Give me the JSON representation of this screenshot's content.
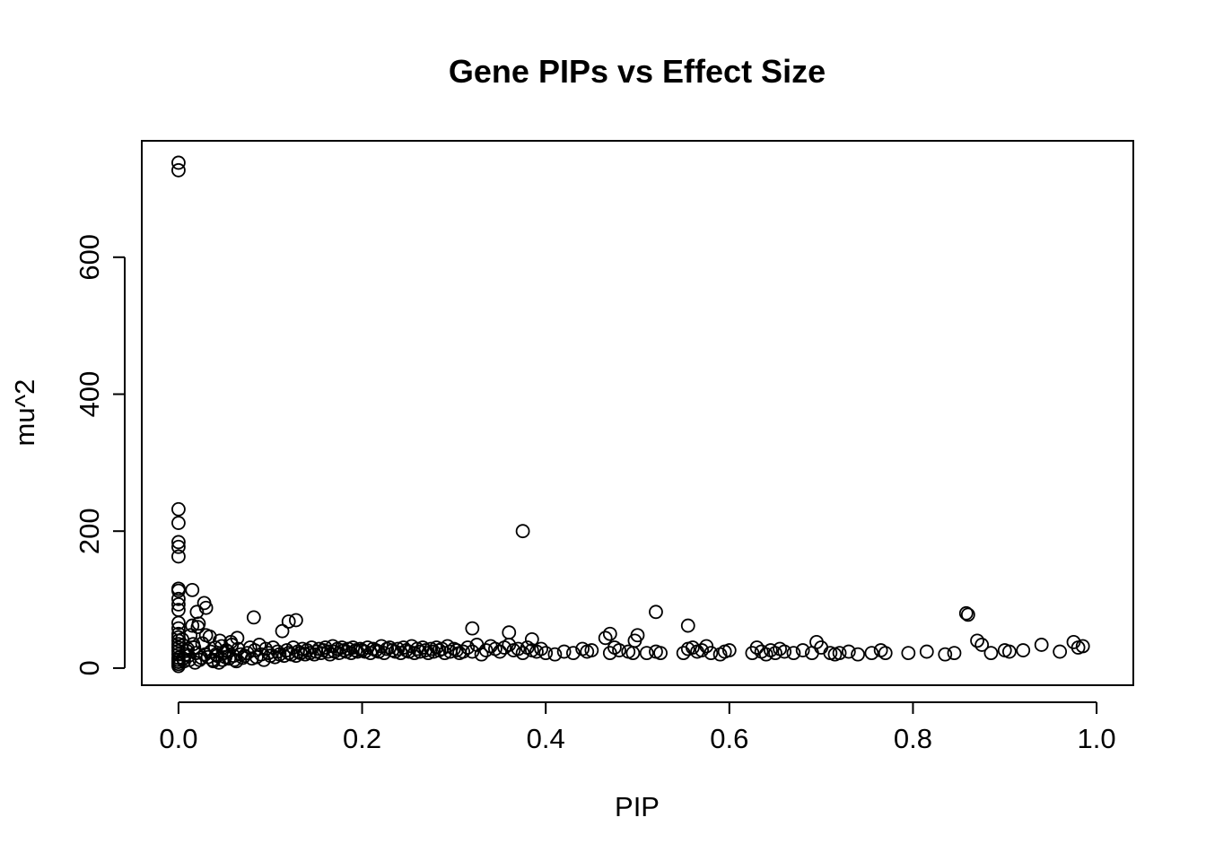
{
  "chart_data": {
    "type": "scatter",
    "title": "Gene PIPs vs Effect Size",
    "xlabel": "PIP",
    "ylabel": "mu^2",
    "xlim": [
      -0.04,
      1.04
    ],
    "ylim": [
      -25,
      770
    ],
    "x_ticks": [
      0.0,
      0.2,
      0.4,
      0.6,
      0.8,
      1.0
    ],
    "x_tick_labels": [
      "0.0",
      "0.2",
      "0.4",
      "0.6",
      "0.8",
      "1.0"
    ],
    "y_ticks": [
      0,
      200,
      400,
      600
    ],
    "y_tick_labels": [
      "0",
      "200",
      "400",
      "600"
    ],
    "grid": false,
    "legend": "none",
    "marker": "open-circle",
    "color": "#000000",
    "series": [
      {
        "x": [
          0.0,
          0.0,
          0.0,
          0.0,
          0.0,
          0.0,
          0.0,
          0.0,
          0.0,
          0.0,
          0.0,
          0.0,
          0.0,
          0.0,
          0.0,
          0.0,
          0.0,
          0.0,
          0.0,
          0.0,
          0.0,
          0.0,
          0.0,
          0.0,
          0.0,
          0.0,
          0.005,
          0.008,
          0.01,
          0.012,
          0.015,
          0.015,
          0.016,
          0.018,
          0.02,
          0.022,
          0.025,
          0.028,
          0.03,
          0.004,
          0.006,
          0.009,
          0.011,
          0.013,
          0.017,
          0.019,
          0.021,
          0.023,
          0.026,
          0.029,
          0.032,
          0.035,
          0.038,
          0.04,
          0.042,
          0.045,
          0.048,
          0.05,
          0.052,
          0.055,
          0.058,
          0.06,
          0.063,
          0.065,
          0.068,
          0.07,
          0.034,
          0.037,
          0.041,
          0.044,
          0.047,
          0.051,
          0.054,
          0.057,
          0.061,
          0.064,
          0.072,
          0.075,
          0.078,
          0.08,
          0.083,
          0.085,
          0.088,
          0.09,
          0.093,
          0.095,
          0.098,
          0.1,
          0.103,
          0.105,
          0.108,
          0.11,
          0.113,
          0.115,
          0.118,
          0.12,
          0.123,
          0.125,
          0.128,
          0.13,
          0.133,
          0.135,
          0.138,
          0.14,
          0.143,
          0.145,
          0.148,
          0.15,
          0.153,
          0.155,
          0.158,
          0.16,
          0.163,
          0.165,
          0.168,
          0.17,
          0.173,
          0.175,
          0.178,
          0.18,
          0.183,
          0.185,
          0.188,
          0.19,
          0.193,
          0.195,
          0.198,
          0.2,
          0.203,
          0.206,
          0.209,
          0.212,
          0.215,
          0.218,
          0.221,
          0.224,
          0.227,
          0.23,
          0.233,
          0.236,
          0.239,
          0.242,
          0.245,
          0.248,
          0.251,
          0.254,
          0.257,
          0.26,
          0.263,
          0.266,
          0.269,
          0.272,
          0.275,
          0.278,
          0.281,
          0.284,
          0.287,
          0.29,
          0.293,
          0.296,
          0.3,
          0.303,
          0.306,
          0.31,
          0.315,
          0.32,
          0.325,
          0.33,
          0.335,
          0.34,
          0.345,
          0.35,
          0.355,
          0.36,
          0.365,
          0.37,
          0.375,
          0.38,
          0.385,
          0.39,
          0.395,
          0.4,
          0.41,
          0.42,
          0.43,
          0.44,
          0.445,
          0.45,
          0.465,
          0.47,
          0.475,
          0.48,
          0.49,
          0.495,
          0.5,
          0.51,
          0.52,
          0.525,
          0.55,
          0.555,
          0.56,
          0.565,
          0.57,
          0.575,
          0.58,
          0.59,
          0.595,
          0.6,
          0.625,
          0.63,
          0.635,
          0.64,
          0.645,
          0.65,
          0.655,
          0.66,
          0.67,
          0.68,
          0.69,
          0.695,
          0.7,
          0.71,
          0.715,
          0.72,
          0.73,
          0.74,
          0.755,
          0.765,
          0.77,
          0.795,
          0.815,
          0.835,
          0.845,
          0.86,
          0.87,
          0.875,
          0.885,
          0.9,
          0.905,
          0.92,
          0.94,
          0.96,
          0.975,
          0.98,
          0.985,
          0.03,
          0.082,
          0.12,
          0.128,
          0.32,
          0.36,
          0.385,
          0.375,
          0.52,
          0.555,
          0.858,
          0.47,
          0.497
        ],
        "y": [
          738,
          727,
          232,
          212,
          184,
          177,
          163,
          116,
          113,
          101,
          93,
          85,
          66,
          58,
          50,
          45,
          40,
          35,
          30,
          25,
          20,
          15,
          12,
          9,
          6,
          3,
          14,
          20,
          28,
          12,
          114,
          62,
          35,
          8,
          82,
          65,
          15,
          95,
          88,
          42,
          10,
          25,
          18,
          48,
          30,
          22,
          60,
          12,
          36,
          20,
          16,
          24,
          10,
          30,
          18,
          40,
          12,
          22,
          26,
          14,
          34,
          18,
          10,
          28,
          20,
          15,
          46,
          12,
          20,
          8,
          32,
          16,
          24,
          38,
          12,
          44,
          18,
          22,
          30,
          14,
          26,
          16,
          34,
          20,
          12,
          28,
          22,
          18,
          30,
          16,
          24,
          20,
          54,
          18,
          26,
          22,
          20,
          30,
          18,
          24,
          22,
          28,
          20,
          26,
          22,
          30,
          20,
          24,
          28,
          22,
          26,
          30,
          24,
          20,
          32,
          24,
          28,
          22,
          30,
          26,
          24,
          28,
          22,
          30,
          26,
          24,
          28,
          26,
          24,
          30,
          22,
          28,
          26,
          24,
          32,
          22,
          28,
          30,
          26,
          24,
          28,
          22,
          30,
          26,
          24,
          32,
          22,
          28,
          24,
          30,
          26,
          22,
          28,
          24,
          30,
          26,
          28,
          22,
          32,
          24,
          28,
          26,
          22,
          24,
          30,
          24,
          34,
          20,
          26,
          32,
          28,
          24,
          30,
          34,
          26,
          28,
          22,
          30,
          26,
          24,
          28,
          22,
          20,
          24,
          22,
          28,
          24,
          26,
          44,
          22,
          30,
          26,
          24,
          22,
          48,
          22,
          24,
          22,
          22,
          28,
          30,
          24,
          26,
          32,
          22,
          20,
          24,
          26,
          22,
          30,
          24,
          20,
          26,
          22,
          28,
          24,
          22,
          26,
          22,
          38,
          30,
          22,
          20,
          22,
          24,
          20,
          22,
          26,
          22,
          22,
          24,
          20,
          22,
          78,
          40,
          34,
          22,
          26,
          24,
          26,
          34,
          24,
          38,
          30,
          32,
          48,
          74,
          68,
          70,
          58,
          52,
          42,
          200,
          82,
          62,
          80,
          50,
          40
        ]
      }
    ]
  }
}
